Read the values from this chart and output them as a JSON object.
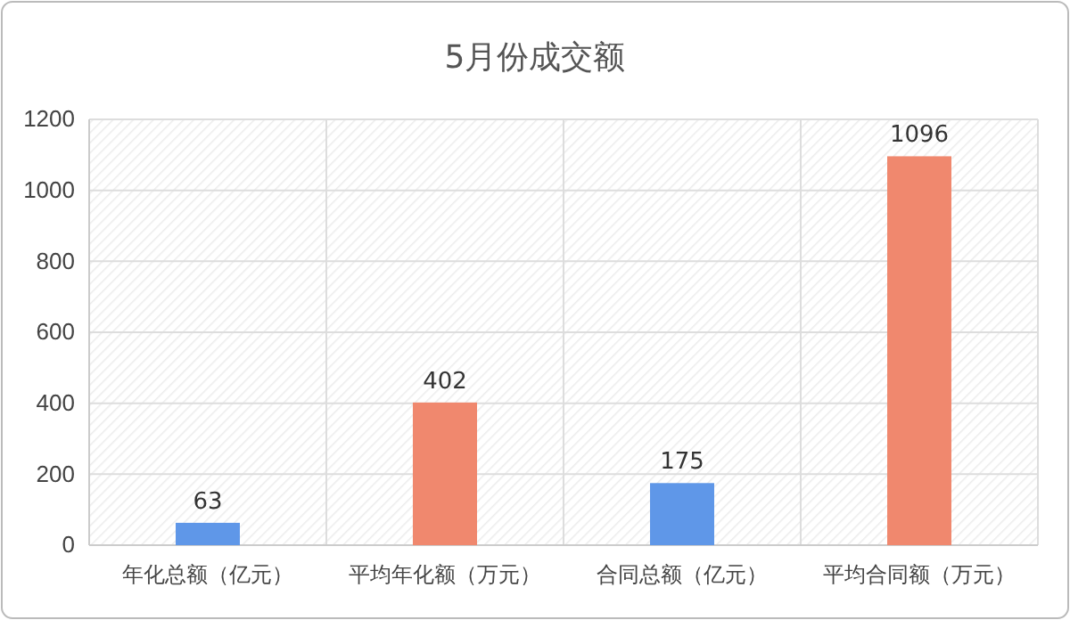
{
  "chart_data": {
    "type": "bar",
    "title": "5月份成交额",
    "categories": [
      "年化总额（亿元）",
      "平均年化额（万元）",
      "合同总额（亿元）",
      "平均合同额（万元）"
    ],
    "values": [
      63,
      402,
      175,
      1096
    ],
    "colors": [
      "#5f97e8",
      "#f0886e",
      "#5f97e8",
      "#f0886e"
    ],
    "ylim": [
      0,
      1200
    ],
    "yticks": [
      0,
      200,
      400,
      600,
      800,
      1000,
      1200
    ],
    "grid": true,
    "data_labels": true
  }
}
